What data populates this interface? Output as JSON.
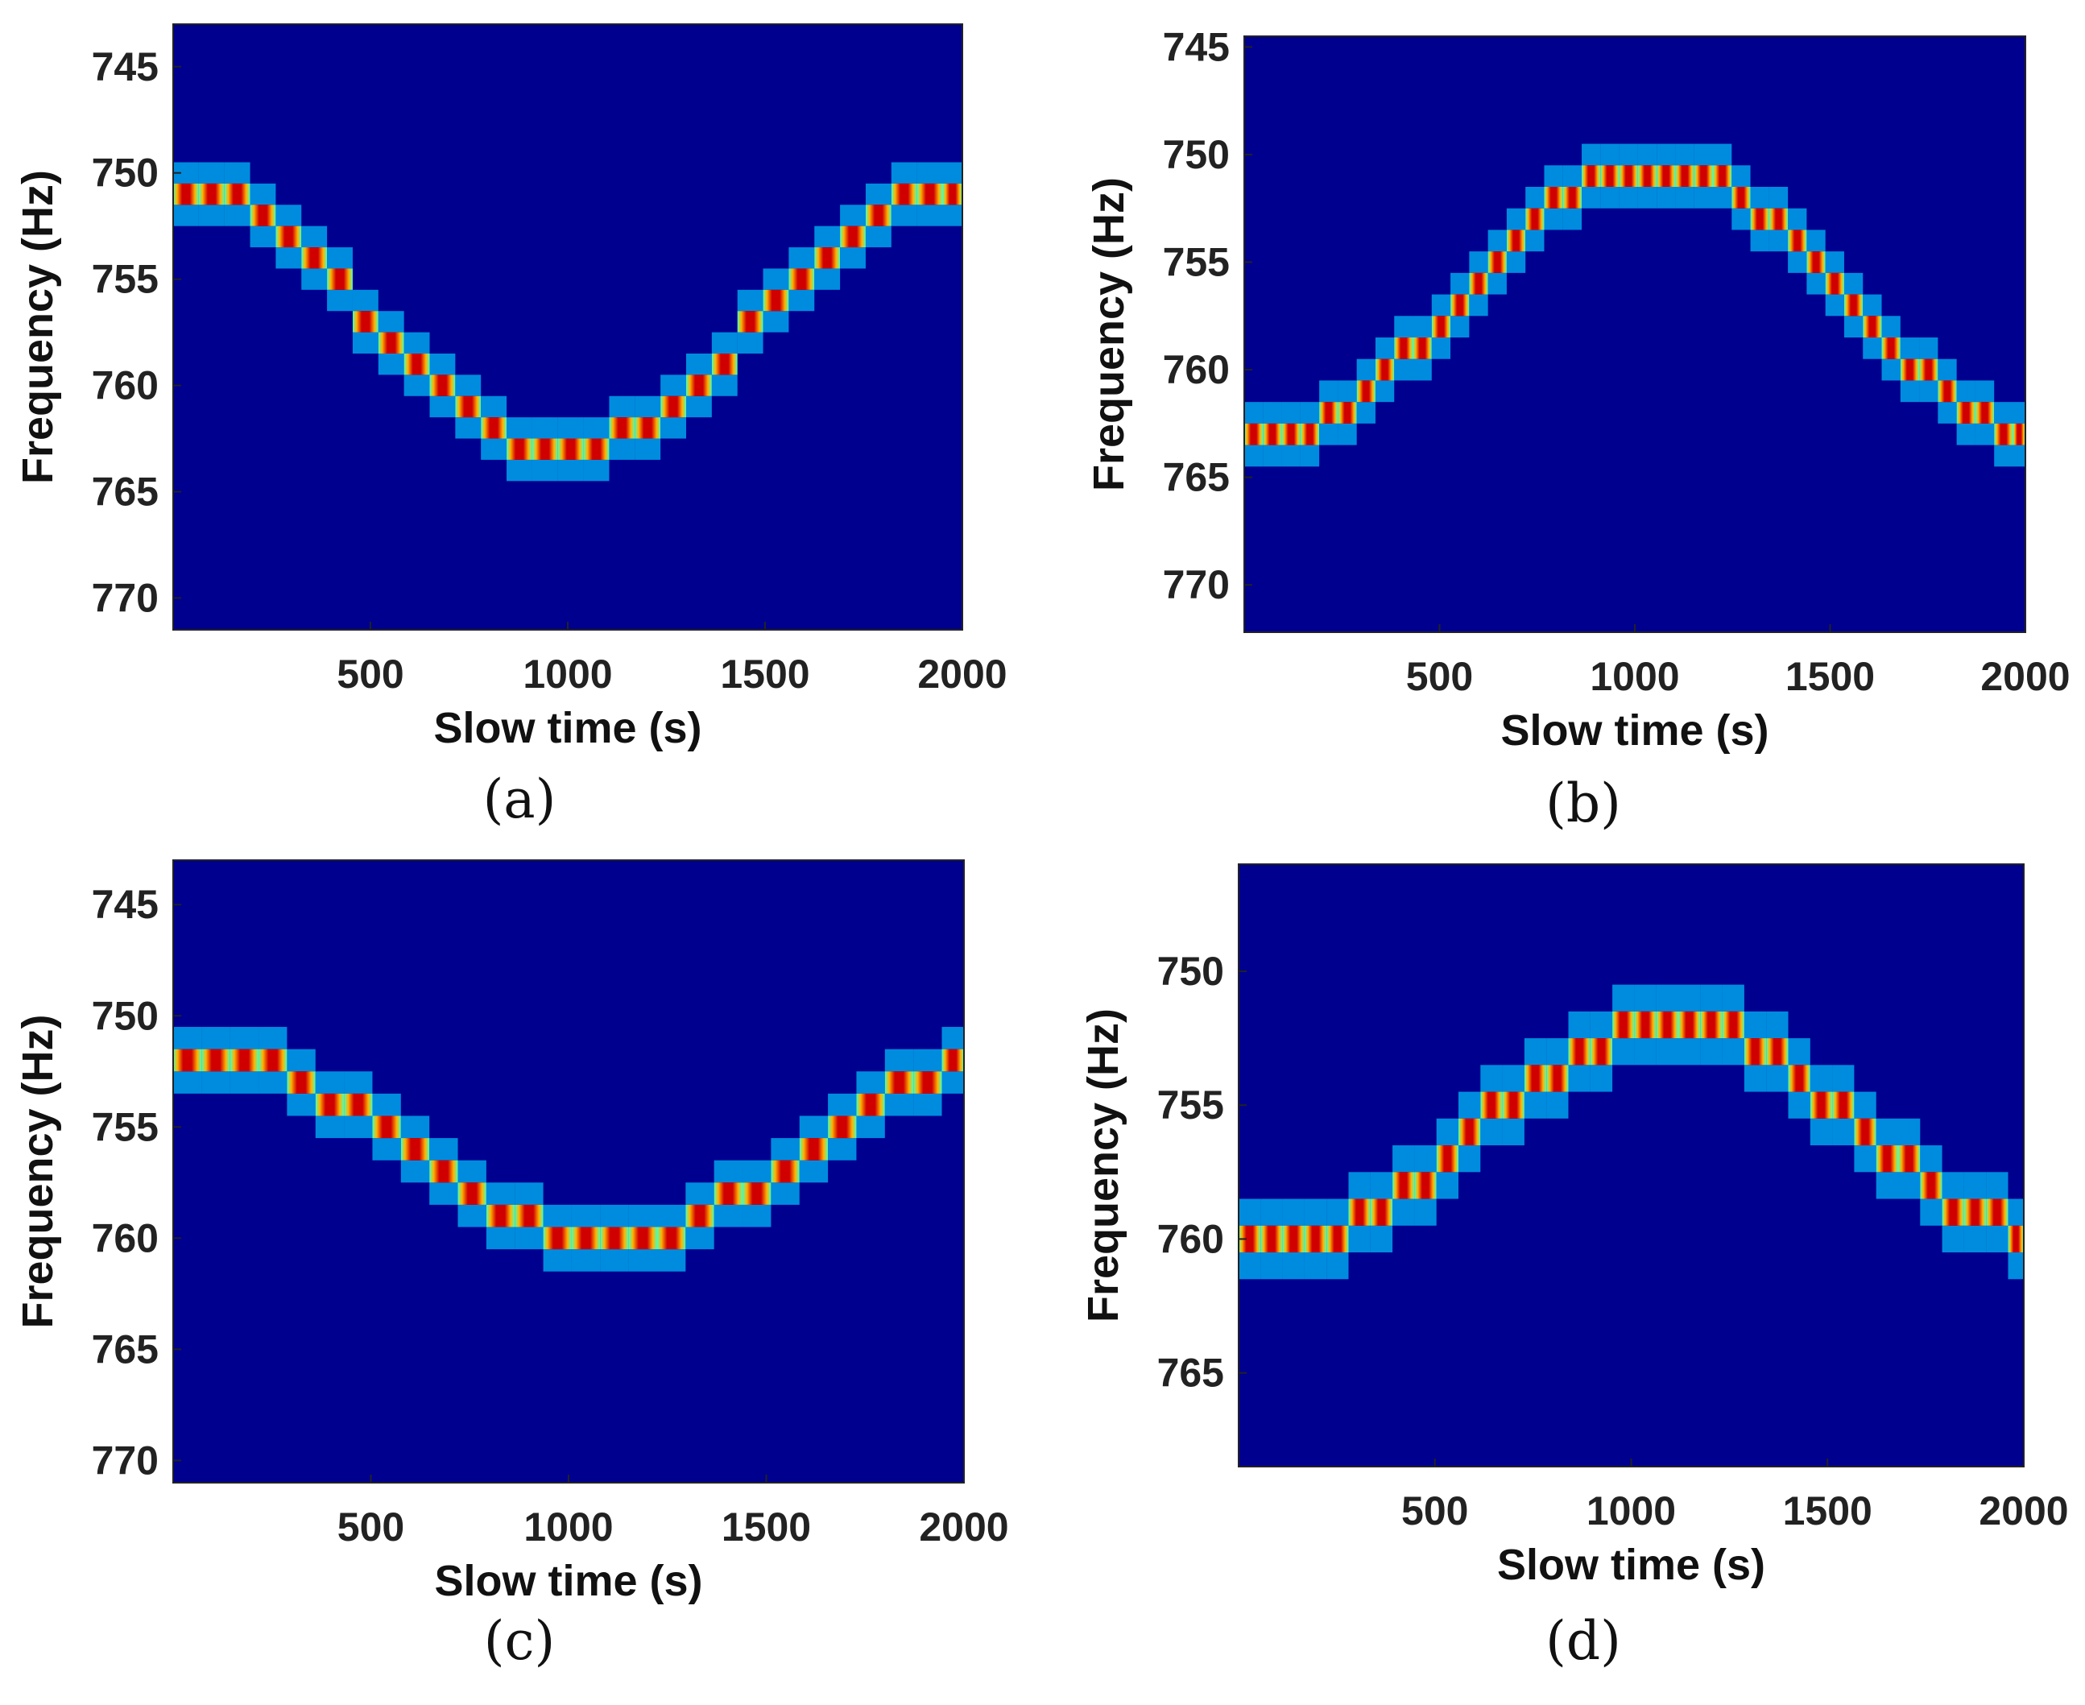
{
  "figure": {
    "background": "#ffffff",
    "colormap": "jet",
    "plot_background": "#00008f"
  },
  "chart_data": [
    {
      "type": "heatmap",
      "caption": "(a)",
      "caption_letter": "a",
      "xlabel": "Slow time (s)",
      "ylabel": "Frequency (Hz)",
      "xlim": [
        0,
        2000
      ],
      "ylim": [
        743,
        771.5
      ],
      "y_reversed": true,
      "xticks": [
        500,
        1000,
        1500,
        2000
      ],
      "yticks": [
        745,
        750,
        755,
        760,
        765,
        770
      ],
      "track": {
        "center_freq": 756.75,
        "amplitude": 6.25,
        "period_s": 2000,
        "phase_s": 0,
        "step_s": 65
      }
    },
    {
      "type": "heatmap",
      "caption": "(b)",
      "caption_letter": "b",
      "xlabel": "Slow time (s)",
      "ylabel": "Frequency (Hz)",
      "xlim": [
        0,
        2000
      ],
      "ylim": [
        744.5,
        772.2
      ],
      "y_reversed": true,
      "xticks": [
        500,
        1000,
        1500,
        2000
      ],
      "yticks": [
        745,
        750,
        755,
        760,
        765,
        770
      ],
      "track": {
        "center_freq": 756.75,
        "amplitude": -6.25,
        "period_s": 2000,
        "phase_s": 50,
        "step_s": 48
      }
    },
    {
      "type": "heatmap",
      "caption": "(c)",
      "caption_letter": "c",
      "xlabel": "Slow time (s)",
      "ylabel": "Frequency (Hz)",
      "xlim": [
        0,
        2000
      ],
      "ylim": [
        743,
        771
      ],
      "y_reversed": true,
      "xticks": [
        500,
        1000,
        1500,
        2000
      ],
      "yticks": [
        745,
        750,
        755,
        760,
        765,
        770
      ],
      "track": {
        "center_freq": 756.0,
        "amplitude": 4.0,
        "period_s": 2000,
        "phase_s": 100,
        "step_s": 72
      }
    },
    {
      "type": "heatmap",
      "caption": "(d)",
      "caption_letter": "d",
      "xlabel": "Slow time (s)",
      "ylabel": "Frequency (Hz)",
      "xlim": [
        0,
        2000
      ],
      "ylim": [
        746,
        768.5
      ],
      "y_reversed": true,
      "xticks": [
        500,
        1000,
        1500,
        2000
      ],
      "yticks": [
        750,
        755,
        760,
        765
      ],
      "track": {
        "center_freq": 756.0,
        "amplitude": -4.0,
        "period_s": 2000,
        "phase_s": 100,
        "step_s": 56
      }
    }
  ]
}
